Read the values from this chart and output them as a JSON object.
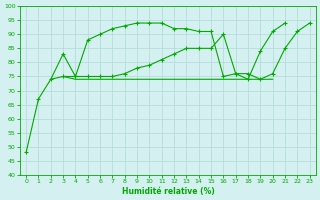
{
  "xlabel": "Humidité relative (%)",
  "background_color": "#d4f0f0",
  "grid_color": "#b0d8d8",
  "line_color": "#00aa00",
  "xlim": [
    -0.5,
    23.5
  ],
  "ylim": [
    40,
    100
  ],
  "yticks": [
    40,
    45,
    50,
    55,
    60,
    65,
    70,
    75,
    80,
    85,
    90,
    95,
    100
  ],
  "xticks": [
    0,
    1,
    2,
    3,
    4,
    5,
    6,
    7,
    8,
    9,
    10,
    11,
    12,
    13,
    14,
    15,
    16,
    17,
    18,
    19,
    20,
    21,
    22,
    23
  ],
  "series1_x": [
    0,
    1,
    2,
    3,
    4,
    5,
    6,
    7,
    8,
    9,
    10,
    11,
    12,
    13,
    14,
    15,
    16,
    17,
    18,
    19,
    20,
    21
  ],
  "series1_y": [
    48,
    67,
    74,
    83,
    75,
    88,
    90,
    92,
    93,
    94,
    94,
    94,
    92,
    92,
    91,
    91,
    75,
    76,
    74,
    84,
    91,
    94
  ],
  "series2_x": [
    2,
    3,
    4,
    5,
    6,
    7,
    8,
    9,
    10,
    11,
    12,
    13,
    14,
    15,
    16,
    17,
    18,
    19,
    20
  ],
  "series2_y": [
    74,
    75,
    74,
    74,
    74,
    74,
    74,
    74,
    74,
    74,
    74,
    74,
    74,
    74,
    74,
    74,
    74,
    74,
    74
  ],
  "series3_x": [
    3,
    4,
    5,
    6,
    7,
    8,
    9,
    10,
    11,
    12,
    13,
    14,
    15,
    16,
    17,
    18,
    19,
    20,
    21,
    22,
    23
  ],
  "series3_y": [
    75,
    75,
    75,
    75,
    75,
    76,
    78,
    79,
    81,
    83,
    85,
    85,
    85,
    90,
    76,
    76,
    74,
    76,
    85,
    91,
    94
  ]
}
